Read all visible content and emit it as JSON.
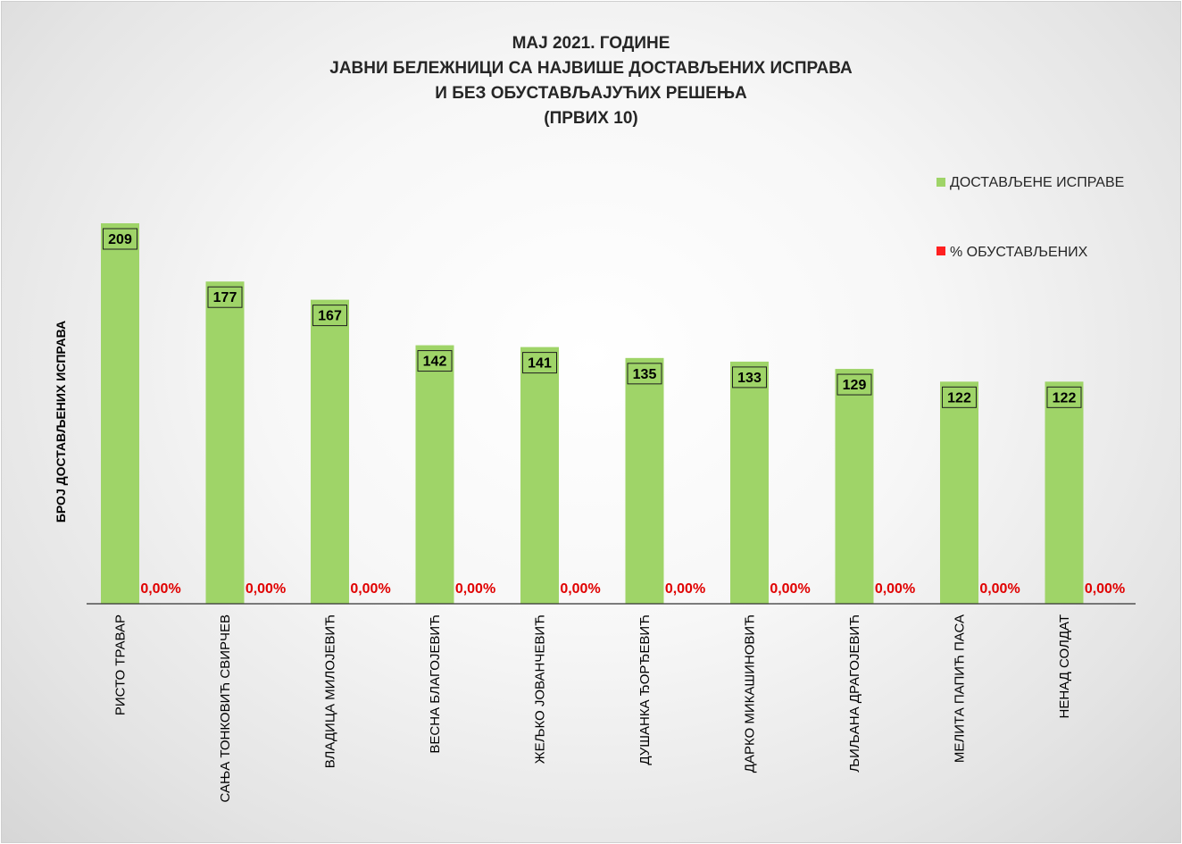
{
  "chart_data": {
    "type": "bar",
    "title_lines": [
      "МАЈ 2021. ГОДИНЕ",
      "ЈАВНИ БЕЛЕЖНИЦИ СА НАЈВИШЕ ДОСТАВЉЕНИХ ИСПРАВА",
      "И БЕЗ ОБУСТАВЉАЈУЋИХ РЕШЕЊА",
      "(ПРВИХ 10)"
    ],
    "ylabel": "БРОЈ ДОСТАВЉЕНИХ ИСПРАВА",
    "xlabel": "",
    "categories": [
      "РИСТО ТРАВАР",
      "САЊА ТОНКОВИЋ СВИРЧЕВ",
      "ВЛАДИЦА МИЛОЈЕВИЋ",
      "ВЕСНА БЛАГОЈЕВИЋ",
      "ЖЕЉКО ЈОВАНЧЕВИЋ",
      "ДУШАНКА ЂОРЂЕВИЋ",
      "ДАРКО МИКАШИНОВИЋ",
      "ЉИЉАНА ДРАГОЈЕВИЋ",
      "МЕЛИТА ПАПИЋ ПАСА",
      "НЕНАД СОЛДАТ"
    ],
    "series": [
      {
        "name": "ДОСТАВЉЕНЕ ИСПРАВЕ",
        "color": "#9fd468",
        "values": [
          209,
          177,
          167,
          142,
          141,
          135,
          133,
          129,
          122,
          122
        ],
        "labels": [
          "209",
          "177",
          "167",
          "142",
          "141",
          "135",
          "133",
          "129",
          "122",
          "122"
        ]
      },
      {
        "name": "% ОБУСТАВЉЕНИХ",
        "color": "#ff2020",
        "values": [
          0,
          0,
          0,
          0,
          0,
          0,
          0,
          0,
          0,
          0
        ],
        "labels": [
          "0,00%",
          "0,00%",
          "0,00%",
          "0,00%",
          "0,00%",
          "0,00%",
          "0,00%",
          "0,00%",
          "0,00%",
          "0,00%"
        ]
      }
    ],
    "ylim": [
      0,
      209
    ],
    "grid": false,
    "legend_position": "top-right"
  }
}
